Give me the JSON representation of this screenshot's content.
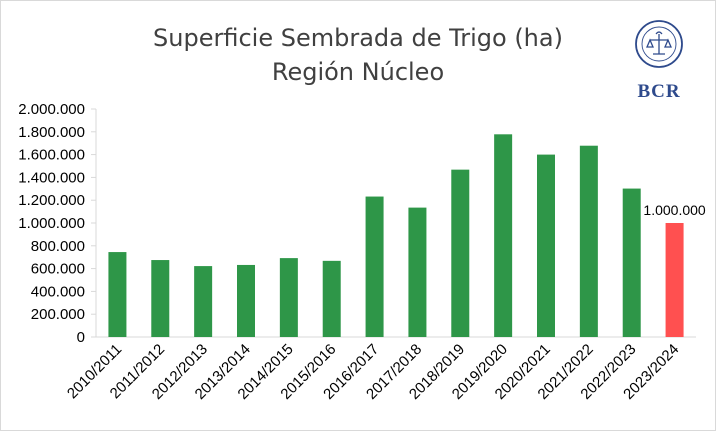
{
  "chart_data": {
    "type": "bar",
    "title_lines": [
      "Superficie Sembrada de Trigo (ha)",
      "Región Núcleo"
    ],
    "categories": [
      "2010/2011",
      "2011/2012",
      "2012/2013",
      "2013/2014",
      "2014/2015",
      "2015/2016",
      "2016/2017",
      "2017/2018",
      "2018/2019",
      "2019/2020",
      "2020/2021",
      "2021/2022",
      "2022/2023",
      "2023/2024"
    ],
    "values": [
      745000,
      675000,
      622000,
      632000,
      692000,
      668000,
      1232000,
      1135000,
      1468000,
      1778000,
      1600000,
      1678000,
      1302000,
      1000000
    ],
    "bar_colors": [
      "#2e9648",
      "#2e9648",
      "#2e9648",
      "#2e9648",
      "#2e9648",
      "#2e9648",
      "#2e9648",
      "#2e9648",
      "#2e9648",
      "#2e9648",
      "#2e9648",
      "#2e9648",
      "#2e9648",
      "#ff5050"
    ],
    "ylim": [
      0,
      2000000
    ],
    "yticks": [
      0,
      200000,
      400000,
      600000,
      800000,
      1000000,
      1200000,
      1400000,
      1600000,
      1800000,
      2000000
    ],
    "ytick_labels": [
      "0",
      "200.000",
      "400.000",
      "600.000",
      "800.000",
      "1.000.000",
      "1.200.000",
      "1.400.000",
      "1.600.000",
      "1.800.000",
      "2.000.000"
    ],
    "data_labels": [
      {
        "index": 13,
        "text": "1.000.000"
      }
    ],
    "grid": false,
    "xlabel": "",
    "ylabel": ""
  },
  "logo": {
    "text": "BCR",
    "seal_text": "BOLSA DE COMERCIO DE ROSARIO",
    "icon": "bcr-seal-icon",
    "color": "#2e4a8c"
  }
}
